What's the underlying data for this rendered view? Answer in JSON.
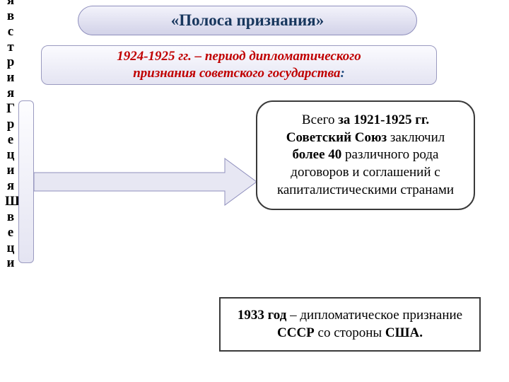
{
  "vertical_label": "явстрияГрецияШвеци",
  "title": {
    "text": "«Полоса признания»",
    "bg_gradient_top": "#f3f3fb",
    "bg_gradient_bottom": "#d2d2e8",
    "border_color": "#8f8fbd",
    "text_color": "#17365d"
  },
  "subtitle": {
    "line1": "1924-1925 гг. – период дипломатического",
    "line2": "признания советского государства",
    "trailing_colon": ":",
    "bg_gradient_top": "#fbfbff",
    "bg_gradient_bottom": "#e4e4f2",
    "border_color": "#9a9ac0",
    "text_color": "#c00000",
    "colon_color": "#1f497d"
  },
  "arrow": {
    "fill": "#e7e7f3",
    "stroke": "#8f8fbd",
    "stroke_width": 1
  },
  "bubble": {
    "bg": "#ffffff",
    "border_color": "#3a3a3a",
    "border_width": 2,
    "parts": [
      {
        "text": "Всего ",
        "bold": false
      },
      {
        "text": "за 1921-1925 гг. Советский Союз",
        "bold": true
      },
      {
        "text": " заключил ",
        "bold": false
      },
      {
        "text": "более 40",
        "bold": true
      },
      {
        "text": " различного рода договоров и соглашений с капиталистическими странами",
        "bold": false
      }
    ]
  },
  "bottom": {
    "bg": "#ffffff",
    "border_color": "#3a3a3a",
    "border_width": 2,
    "parts": [
      {
        "text": "1933 год",
        "bold": true
      },
      {
        "text": " – дипломатическое признание ",
        "bold": false
      },
      {
        "text": "СССР",
        "bold": true
      },
      {
        "text": " со стороны ",
        "bold": false
      },
      {
        "text": "США.",
        "bold": true
      }
    ]
  }
}
